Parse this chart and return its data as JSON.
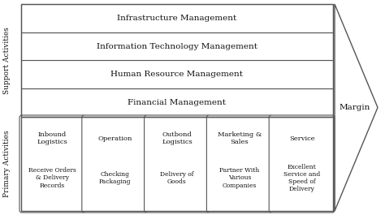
{
  "support_rows": [
    "Financial Management",
    "Human Resource Management",
    "Information Technology Management",
    "Infrastructure Management"
  ],
  "primary_cols": [
    {
      "title": "Inbound\nLogistics",
      "subtitle": "Receive Orders\n& Delivery\nRecords"
    },
    {
      "title": "Operation",
      "subtitle": "Checking\nPackaging"
    },
    {
      "title": "Outbond\nLogistics",
      "subtitle": "Delivery of\nGoods"
    },
    {
      "title": "Marketing &\nSales",
      "subtitle": "Partner With\nVarious\nCompanies"
    },
    {
      "title": "Service",
      "subtitle": "Excellent\nService and\nSpeed of\nDelivery"
    }
  ],
  "support_label": "Support Activities",
  "primary_label": "Primary Activities",
  "margin_label": "Margin",
  "bg_color": "#ffffff",
  "box_color": "#ffffff",
  "border_color": "#555555",
  "text_color": "#111111",
  "font_size_support": 7.5,
  "font_size_primary_title": 6.0,
  "font_size_primary_sub": 5.5,
  "font_size_label": 6.5,
  "font_size_margin": 7.5
}
